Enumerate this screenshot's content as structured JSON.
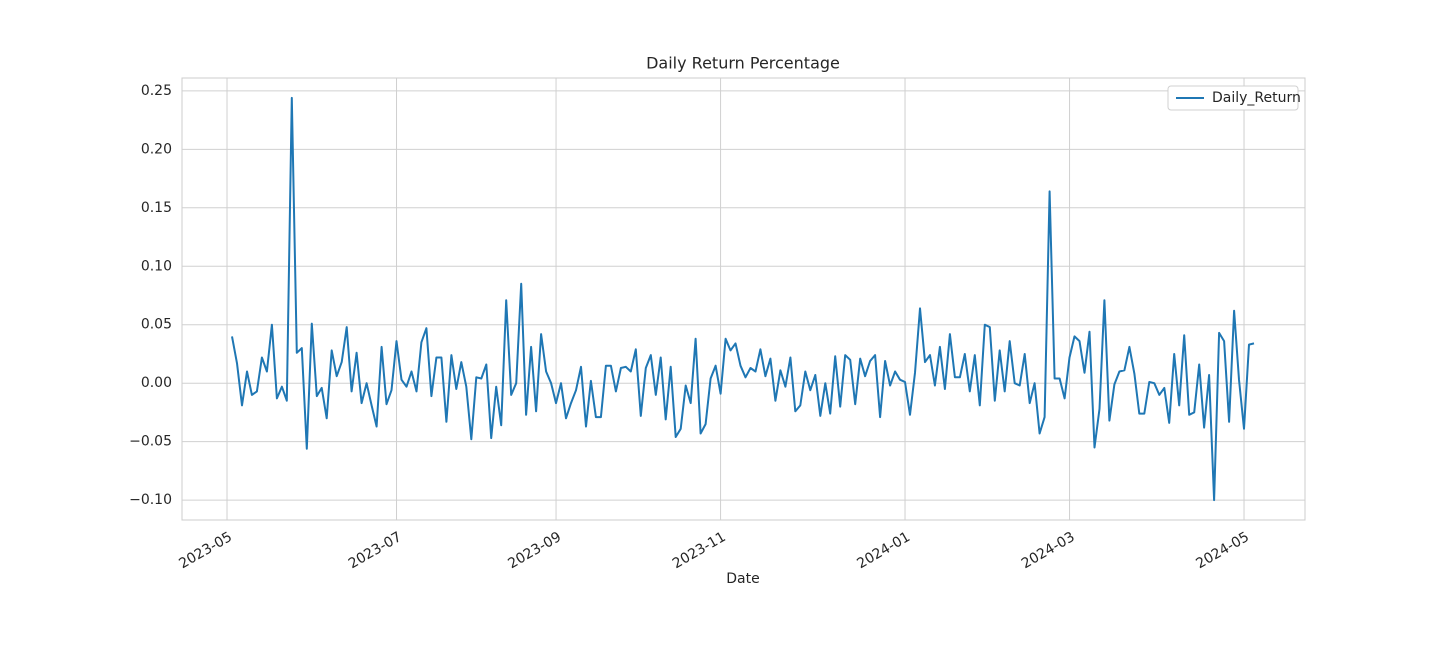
{
  "chart_data": {
    "type": "line",
    "title": "Daily Return Percentage",
    "x_label": "Date",
    "x": [
      "2023-05",
      "2023-05",
      "2023-05",
      "2023-05",
      "2023-05",
      "2023-05",
      "2023-05",
      "2023-05",
      "2023-05",
      "2023-05",
      "2023-05",
      "2023-05",
      "2023-05",
      "2023-05",
      "2023-05",
      "2023-05",
      "2023-06",
      "2023-06",
      "2023-06",
      "2023-06",
      "2023-06",
      "2023-06",
      "2023-06",
      "2023-06",
      "2023-06",
      "2023-06",
      "2023-06",
      "2023-06",
      "2023-06",
      "2023-06",
      "2023-06",
      "2023-06",
      "2023-06",
      "2023-06",
      "2023-07",
      "2023-07",
      "2023-07",
      "2023-07",
      "2023-07",
      "2023-07",
      "2023-07",
      "2023-07",
      "2023-07",
      "2023-07",
      "2023-07",
      "2023-07",
      "2023-07",
      "2023-07",
      "2023-07",
      "2023-08",
      "2023-08",
      "2023-08",
      "2023-08",
      "2023-08",
      "2023-08",
      "2023-08",
      "2023-08",
      "2023-08",
      "2023-08",
      "2023-08",
      "2023-08",
      "2023-08",
      "2023-08",
      "2023-08",
      "2023-08",
      "2023-08",
      "2023-09",
      "2023-09",
      "2023-09",
      "2023-09",
      "2023-09",
      "2023-09",
      "2023-09",
      "2023-09",
      "2023-09",
      "2023-09",
      "2023-09",
      "2023-09",
      "2023-09",
      "2023-09",
      "2023-09",
      "2023-10",
      "2023-10",
      "2023-10",
      "2023-10",
      "2023-10",
      "2023-10",
      "2023-10",
      "2023-10",
      "2023-10",
      "2023-10",
      "2023-10",
      "2023-10",
      "2023-10",
      "2023-10",
      "2023-10",
      "2023-10",
      "2023-10",
      "2023-10",
      "2023-11",
      "2023-11",
      "2023-11",
      "2023-11",
      "2023-11",
      "2023-11",
      "2023-11",
      "2023-11",
      "2023-11",
      "2023-11",
      "2023-11",
      "2023-11",
      "2023-11",
      "2023-11",
      "2023-11",
      "2023-11",
      "2023-11",
      "2023-11",
      "2023-11",
      "2023-11",
      "2023-12",
      "2023-12",
      "2023-12",
      "2023-12",
      "2023-12",
      "2023-12",
      "2023-12",
      "2023-12",
      "2023-12",
      "2023-12",
      "2023-12",
      "2023-12",
      "2023-12",
      "2023-12",
      "2023-12",
      "2023-12",
      "2023-12",
      "2024-01",
      "2024-01",
      "2024-01",
      "2024-01",
      "2024-01",
      "2024-01",
      "2024-01",
      "2024-01",
      "2024-01",
      "2024-01",
      "2024-01",
      "2024-01",
      "2024-01",
      "2024-01",
      "2024-01",
      "2024-02",
      "2024-02",
      "2024-02",
      "2024-02",
      "2024-02",
      "2024-02",
      "2024-02",
      "2024-02",
      "2024-02",
      "2024-02",
      "2024-02",
      "2024-02",
      "2024-02",
      "2024-02",
      "2024-02",
      "2024-02",
      "2024-02",
      "2024-02",
      "2024-03",
      "2024-03",
      "2024-03",
      "2024-03",
      "2024-03",
      "2024-03",
      "2024-03",
      "2024-03",
      "2024-03",
      "2024-03",
      "2024-03",
      "2024-03",
      "2024-03",
      "2024-03",
      "2024-03",
      "2024-03",
      "2024-03",
      "2024-04",
      "2024-04",
      "2024-04",
      "2024-04",
      "2024-04",
      "2024-04",
      "2024-04",
      "2024-04",
      "2024-04",
      "2024-04",
      "2024-04",
      "2024-04",
      "2024-04",
      "2024-04",
      "2024-04",
      "2024-04",
      "2024-04",
      "2024-04",
      "2024-05",
      "2024-05"
    ],
    "series": [
      {
        "name": "Daily_Return",
        "color": "#1f77b4",
        "values": [
          0.04,
          0.017,
          -0.019,
          0.01,
          -0.01,
          -0.007,
          0.022,
          0.01,
          0.05,
          -0.013,
          -0.003,
          -0.015,
          0.244,
          0.026,
          0.03,
          -0.056,
          0.051,
          -0.011,
          -0.004,
          -0.03,
          0.028,
          0.006,
          0.018,
          0.048,
          -0.007,
          0.026,
          -0.017,
          0,
          -0.019,
          -0.037,
          0.031,
          -0.018,
          -0.006,
          0.036,
          0.003,
          -0.003,
          0.01,
          -0.007,
          0.035,
          0.047,
          -0.011,
          0.022,
          0.022,
          -0.033,
          0.024,
          -0.005,
          0.018,
          -0.003,
          -0.048,
          0.005,
          0.004,
          0.016,
          -0.047,
          -0.003,
          -0.036,
          0.071,
          -0.01,
          0,
          0.085,
          -0.027,
          0.031,
          -0.024,
          0.042,
          0.01,
          0,
          -0.017,
          0,
          -0.03,
          -0.017,
          -0.006,
          0.014,
          -0.037,
          0.002,
          -0.029,
          -0.029,
          0.015,
          0.015,
          -0.007,
          0.013,
          0.014,
          0.01,
          0.029,
          -0.028,
          0.013,
          0.024,
          -0.01,
          0.022,
          -0.031,
          0.014,
          -0.046,
          -0.039,
          -0.002,
          -0.017,
          0.038,
          -0.043,
          -0.035,
          0.004,
          0.015,
          -0.009,
          0.038,
          0.028,
          0.034,
          0.015,
          0.005,
          0.013,
          0.01,
          0.029,
          0.006,
          0.021,
          -0.015,
          0.011,
          -0.003,
          0.022,
          -0.024,
          -0.019,
          0.01,
          -0.006,
          0.007,
          -0.028,
          0,
          -0.026,
          0.023,
          -0.02,
          0.024,
          0.02,
          -0.018,
          0.021,
          0.006,
          0.019,
          0.024,
          -0.029,
          0.019,
          -0.002,
          0.01,
          0.003,
          0.001,
          -0.027,
          0.009,
          0.064,
          0.018,
          0.024,
          -0.002,
          0.031,
          -0.005,
          0.042,
          0.005,
          0.005,
          0.025,
          -0.007,
          0.024,
          -0.019,
          0.05,
          0.048,
          -0.015,
          0.028,
          -0.007,
          0.036,
          0,
          -0.002,
          0.025,
          -0.017,
          0,
          -0.043,
          -0.029,
          0.164,
          0.004,
          0.004,
          -0.013,
          0.022,
          0.04,
          0.036,
          0.009,
          0.044,
          -0.055,
          -0.022,
          0.071,
          -0.032,
          -0.001,
          0.01,
          0.011,
          0.031,
          0.008,
          -0.026,
          -0.026,
          0.001,
          0,
          -0.01,
          -0.004,
          -0.034,
          0.025,
          -0.019,
          0.041,
          -0.027,
          -0.025,
          0.016,
          -0.038,
          0.007,
          -0.1,
          0.043,
          0.036,
          -0.033,
          0.062,
          0.003,
          -0.039,
          0.033,
          0.034
        ]
      }
    ],
    "xticks": [
      "2023-05",
      "2023-07",
      "2023-09",
      "2023-11",
      "2024-01",
      "2024-03",
      "2024-05"
    ],
    "ylim": [
      -0.117,
      0.261
    ],
    "yticks": [
      {
        "value": -0.1,
        "label": "−0.10"
      },
      {
        "value": -0.05,
        "label": "−0.05"
      },
      {
        "value": 0,
        "label": "0.00"
      },
      {
        "value": 0.05,
        "label": "0.05"
      },
      {
        "value": 0.1,
        "label": "0.10"
      },
      {
        "value": 0.15,
        "label": "0.15"
      },
      {
        "value": 0.2,
        "label": "0.20"
      },
      {
        "value": 0.25,
        "label": "0.25"
      }
    ],
    "grid": true,
    "legend": "upper right"
  }
}
